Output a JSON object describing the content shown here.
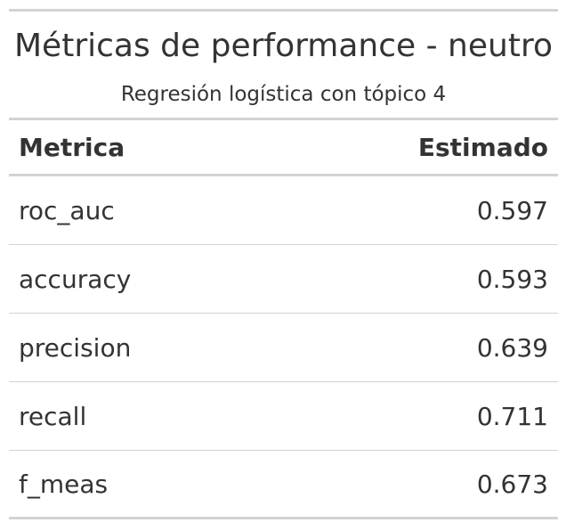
{
  "table": {
    "title": "Métricas de performance - neutro",
    "subtitle": "Regresión logística con tópico 4",
    "columns": {
      "metric": "Metrica",
      "estimate": "Estimado"
    },
    "rows": [
      {
        "metric": "roc_auc",
        "estimate": "0.597"
      },
      {
        "metric": "accuracy",
        "estimate": "0.593"
      },
      {
        "metric": "precision",
        "estimate": "0.639"
      },
      {
        "metric": "recall",
        "estimate": "0.711"
      },
      {
        "metric": "f_meas",
        "estimate": "0.673"
      }
    ]
  }
}
